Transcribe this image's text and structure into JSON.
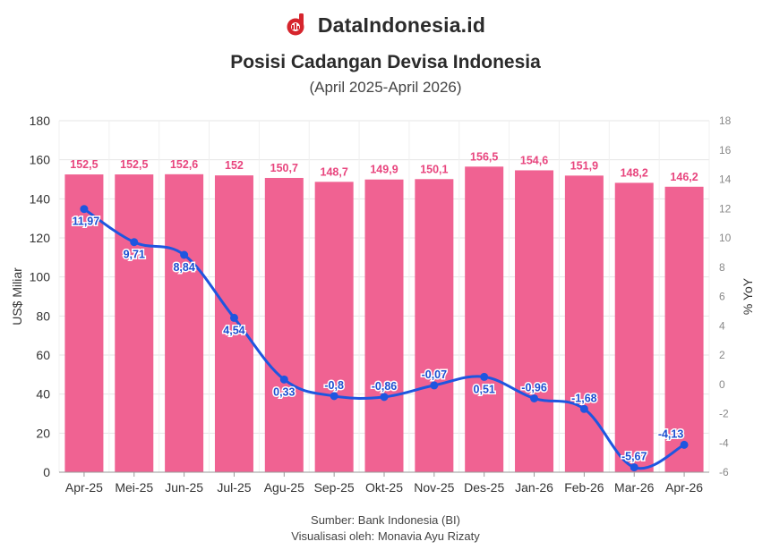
{
  "brand": {
    "name": "DataIndonesia.id",
    "logo_icon": "dataindonesia-logo-icon"
  },
  "chart_data": {
    "type": "bar+line",
    "title": "Posisi Cadangan Devisa Indonesia",
    "subtitle": "(April 2025-April 2026)",
    "categories": [
      "Apr-25",
      "Mei-25",
      "Jun-25",
      "Jul-25",
      "Agu-25",
      "Sep-25",
      "Okt-25",
      "Nov-25",
      "Des-25",
      "Jan-26",
      "Feb-26",
      "Mar-26",
      "Apr-26"
    ],
    "series": [
      {
        "type": "bar",
        "axis": "left",
        "color": "#f06292",
        "values": [
          152.5,
          152.5,
          152.6,
          152,
          150.7,
          148.7,
          149.9,
          150.1,
          156.5,
          154.6,
          151.9,
          148.2,
          146.2
        ],
        "labels": [
          "152,5",
          "152,5",
          "152,6",
          "152",
          "150,7",
          "148,7",
          "149,9",
          "150,1",
          "156,5",
          "154,6",
          "151,9",
          "148,2",
          "146,2"
        ]
      },
      {
        "type": "line",
        "axis": "right",
        "color": "#1e56e0",
        "values": [
          11.97,
          9.71,
          8.84,
          4.54,
          0.33,
          -0.8,
          -0.86,
          -0.07,
          0.51,
          -0.96,
          -1.68,
          -5.67,
          -4.13
        ],
        "labels": [
          "11,97",
          "9,71",
          "8,84",
          "4,54",
          "0,33",
          "-0,8",
          "-0,86",
          "-0,07",
          "0,51",
          "-0,96",
          "-1,68",
          "-5,67",
          "-4,13"
        ]
      }
    ],
    "ylabel": "US$ Miliar",
    "y2label": "% YoY",
    "ylim": [
      0,
      180
    ],
    "y2lim": [
      -6,
      18
    ],
    "yticks": [
      "0",
      "20",
      "40",
      "60",
      "80",
      "100",
      "120",
      "140",
      "160",
      "180"
    ],
    "y2ticks": [
      "-6",
      "-4",
      "-2",
      "0",
      "2",
      "4",
      "6",
      "8",
      "10",
      "12",
      "14",
      "16",
      "18"
    ],
    "grid": true
  },
  "footer": {
    "source": "Sumber: Bank Indonesia (BI)",
    "credit": "Visualisasi oleh: Monavia Ayu Rizaty"
  }
}
